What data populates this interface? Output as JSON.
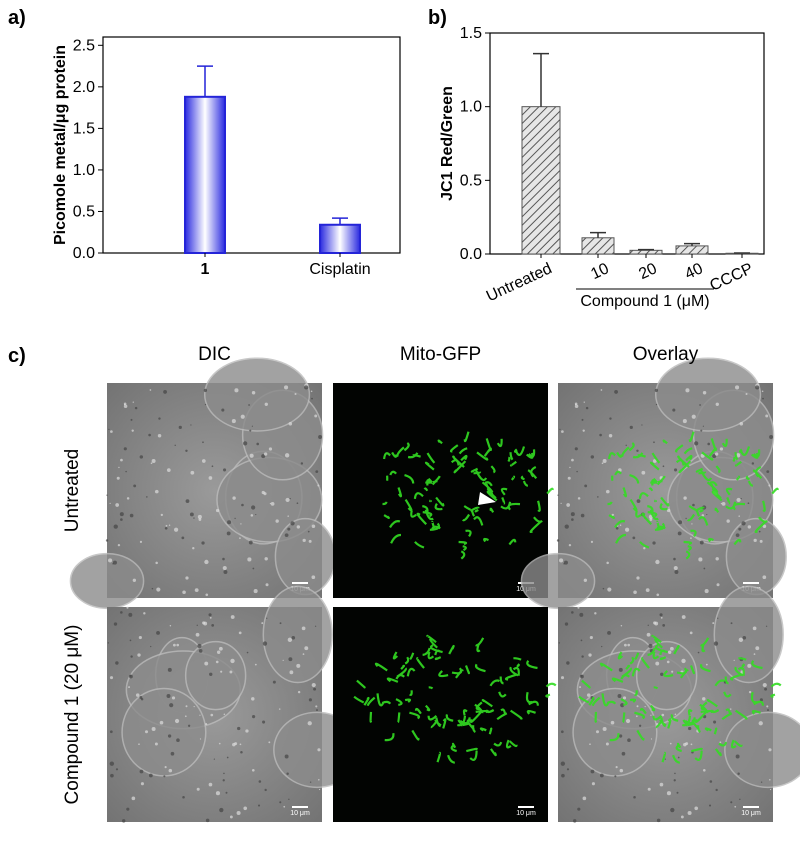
{
  "chart_data": [
    {
      "type": "bar",
      "panel_label": "a)",
      "y_label": "Picomole metal/μg protein",
      "categories": [
        "1",
        "Cisplatin"
      ],
      "values": [
        1.88,
        0.34
      ],
      "errors": [
        0.37,
        0.08
      ],
      "color": "#2424d8",
      "ylim": [
        0,
        2.6
      ],
      "yticks": [
        {
          "value": 0,
          "label": "0.0"
        },
        0.5,
        {
          "value": 1,
          "label": "1.0"
        },
        1.5,
        {
          "value": 2,
          "label": "2.0"
        },
        2.5
      ]
    },
    {
      "type": "bar",
      "panel_label": "b)",
      "y_label": "JC1 Red/Green",
      "categories": [
        "Untreated",
        "10",
        "20",
        "40",
        "CCCP"
      ],
      "values": [
        1.0,
        0.11,
        0.025,
        0.055,
        0.005
      ],
      "errors": [
        0.36,
        0.035,
        0.005,
        0.015,
        0.002
      ],
      "color": "#555555",
      "hatch": true,
      "group_label": "Compound 1 (μM)",
      "ylim": [
        0,
        1.5
      ],
      "yticks": [
        {
          "value": 0,
          "label": "0.0"
        },
        0.5,
        {
          "value": 1,
          "label": "1.0"
        },
        1.5
      ]
    }
  ],
  "panel_c": {
    "label": "c)",
    "columns": [
      "DIC",
      "Mito-GFP",
      "Overlay"
    ],
    "rows": [
      "Untreated",
      "Compound 1 (20 μM)"
    ],
    "scale_bar": "10 μm"
  }
}
